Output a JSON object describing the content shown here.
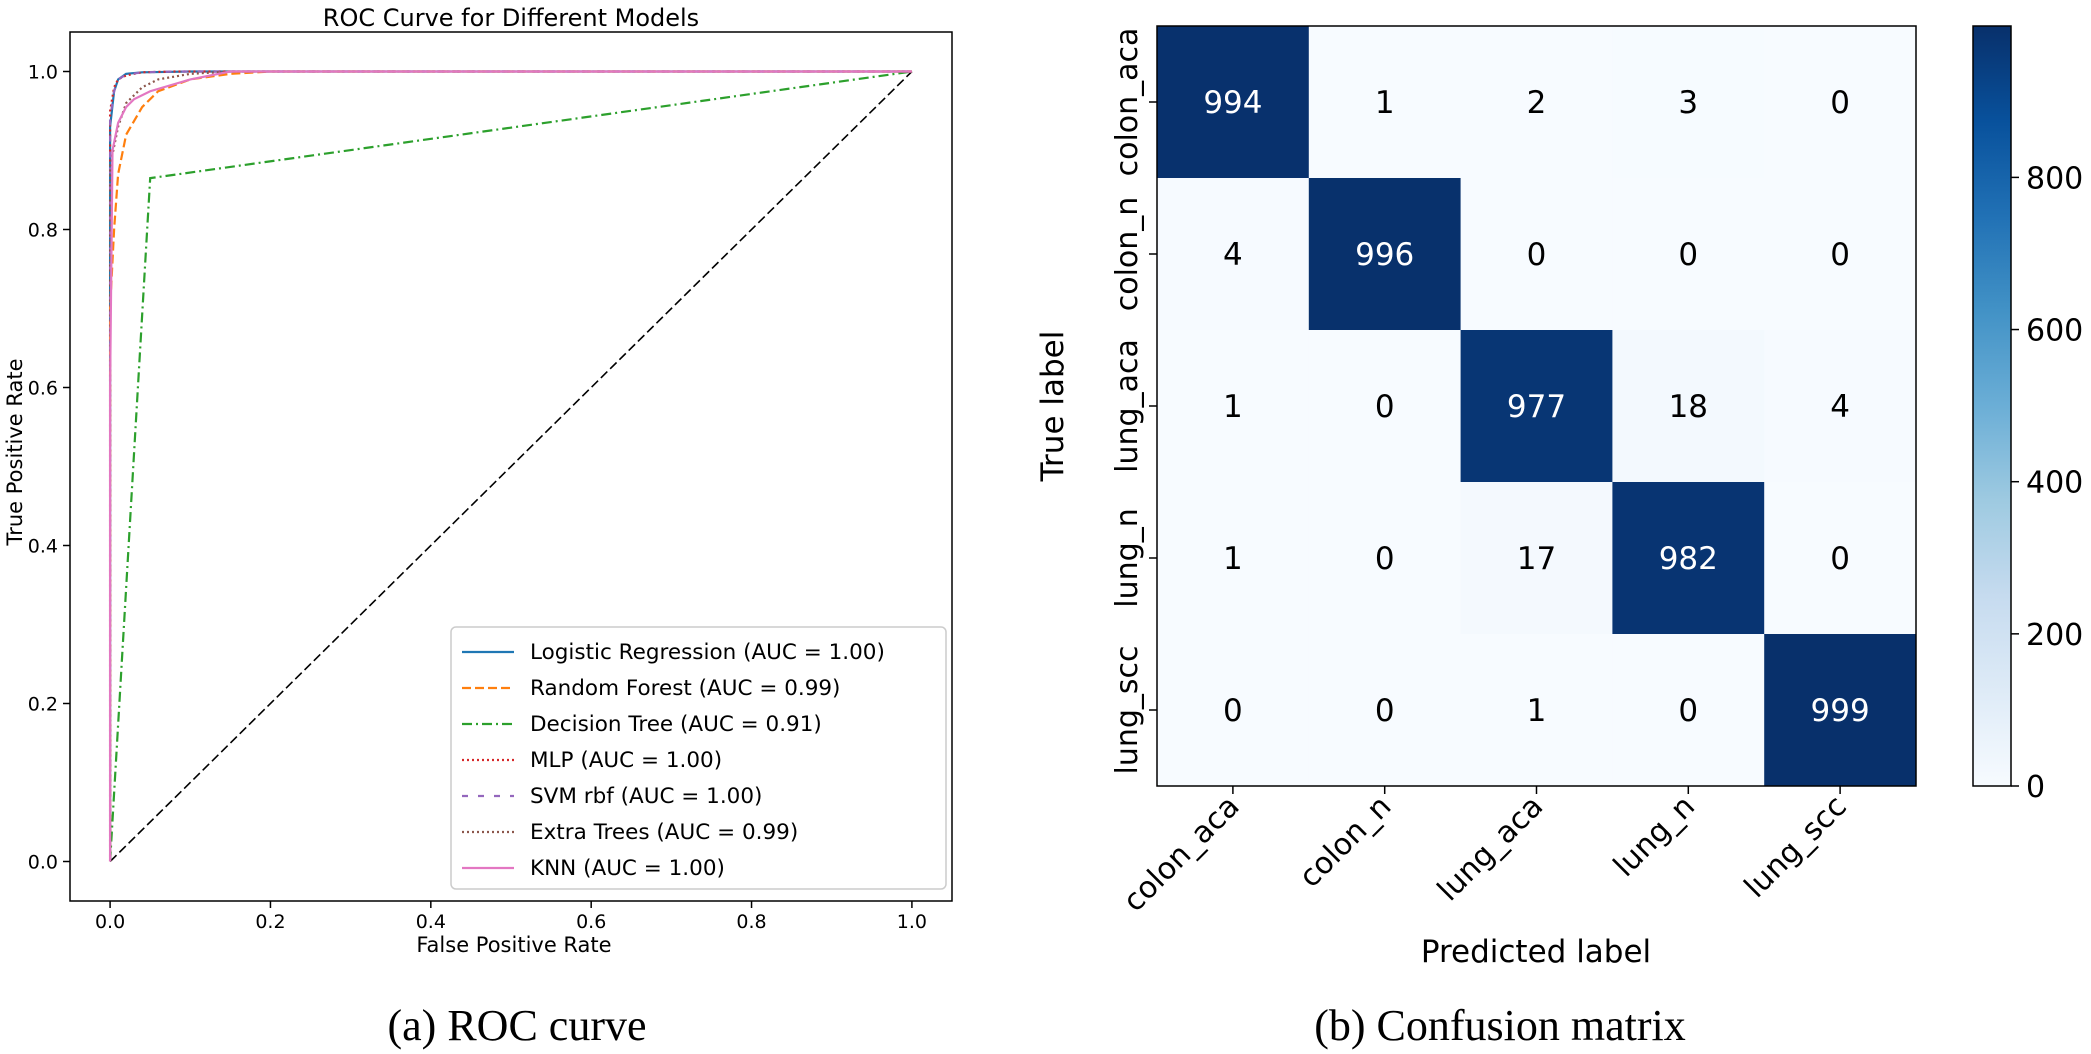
{
  "chart_data": [
    {
      "type": "line",
      "title": "ROC Curve for Different Models",
      "xlabel": "False Positive Rate",
      "ylabel": "True Positive Rate",
      "xlim": [
        -0.05,
        1.05
      ],
      "ylim": [
        -0.05,
        1.05
      ],
      "x_ticks": [
        "0.0",
        "0.2",
        "0.4",
        "0.6",
        "0.8",
        "1.0"
      ],
      "y_ticks": [
        "0.0",
        "0.2",
        "0.4",
        "0.6",
        "0.8",
        "1.0"
      ],
      "legend_position": "lower-right",
      "caption": "(a) ROC curve",
      "series": [
        {
          "name": "Logistic Regression (AUC = 1.00)",
          "color": "#1f77b4",
          "dash": "solid",
          "x": [
            0,
            0.0,
            0.005,
            0.01,
            0.02,
            0.04,
            0.1,
            1.0
          ],
          "y": [
            0,
            0.93,
            0.975,
            0.99,
            0.997,
            0.999,
            1.0,
            1.0
          ]
        },
        {
          "name": "Random Forest (AUC = 0.99)",
          "color": "#ff7f0e",
          "dash": "dashed",
          "x": [
            0,
            0.0,
            0.005,
            0.01,
            0.02,
            0.04,
            0.06,
            0.1,
            0.15,
            0.2,
            1.0
          ],
          "y": [
            0,
            0.7,
            0.8,
            0.87,
            0.92,
            0.955,
            0.975,
            0.99,
            0.997,
            1.0,
            1.0
          ]
        },
        {
          "name": "Decision Tree (AUC = 0.91)",
          "color": "#2ca02c",
          "dash": "dashdot",
          "x": [
            0,
            0.05,
            1.0
          ],
          "y": [
            0,
            0.865,
            1.0
          ]
        },
        {
          "name": "MLP (AUC = 1.00)",
          "color": "#d62728",
          "dash": "dotted",
          "x": [
            0,
            0.0,
            0.005,
            0.01,
            0.02,
            0.04,
            0.08,
            1.0
          ],
          "y": [
            0,
            0.95,
            0.98,
            0.99,
            0.995,
            0.999,
            1.0,
            1.0
          ]
        },
        {
          "name": "SVM rbf (AUC = 1.00)",
          "color": "#9467bd",
          "dash": "loosedash",
          "x": [
            0,
            0.0,
            0.005,
            0.01,
            0.02,
            0.04,
            0.08,
            1.0
          ],
          "y": [
            0,
            0.94,
            0.975,
            0.99,
            0.996,
            0.999,
            1.0,
            1.0
          ]
        },
        {
          "name": "Extra Trees (AUC = 0.99)",
          "color": "#8c564b",
          "dash": "dotted",
          "x": [
            0,
            0.0,
            0.01,
            0.02,
            0.04,
            0.06,
            0.1,
            0.15,
            1.0
          ],
          "y": [
            0,
            0.88,
            0.93,
            0.96,
            0.98,
            0.99,
            0.997,
            1.0,
            1.0
          ]
        },
        {
          "name": "KNN (AUC = 1.00)",
          "color": "#e377c2",
          "dash": "solid",
          "x": [
            0,
            0.0,
            0.003,
            0.01,
            0.02,
            0.03,
            0.05,
            0.1,
            0.15,
            1.0
          ],
          "y": [
            0,
            0.6,
            0.9,
            0.935,
            0.955,
            0.965,
            0.975,
            0.99,
            1.0,
            1.0
          ]
        }
      ],
      "diagonal": {
        "x": [
          0,
          1
        ],
        "y": [
          0,
          1
        ],
        "color": "#000000",
        "dash": "dashed"
      }
    },
    {
      "type": "heatmap",
      "title": "",
      "xlabel": "Predicted label",
      "ylabel": "True label",
      "labels": [
        "colon_aca",
        "colon_n",
        "lung_aca",
        "lung_n",
        "lung_scc"
      ],
      "matrix": [
        [
          994,
          1,
          2,
          3,
          0
        ],
        [
          4,
          996,
          0,
          0,
          0
        ],
        [
          1,
          0,
          977,
          18,
          4
        ],
        [
          1,
          0,
          17,
          982,
          0
        ],
        [
          0,
          0,
          1,
          0,
          999
        ]
      ],
      "colormap": "Blues",
      "colorbar": {
        "min": 0,
        "max": 999,
        "ticks": [
          "0",
          "200",
          "400",
          "600",
          "800"
        ]
      },
      "caption": "(b) Confusion matrix"
    }
  ]
}
